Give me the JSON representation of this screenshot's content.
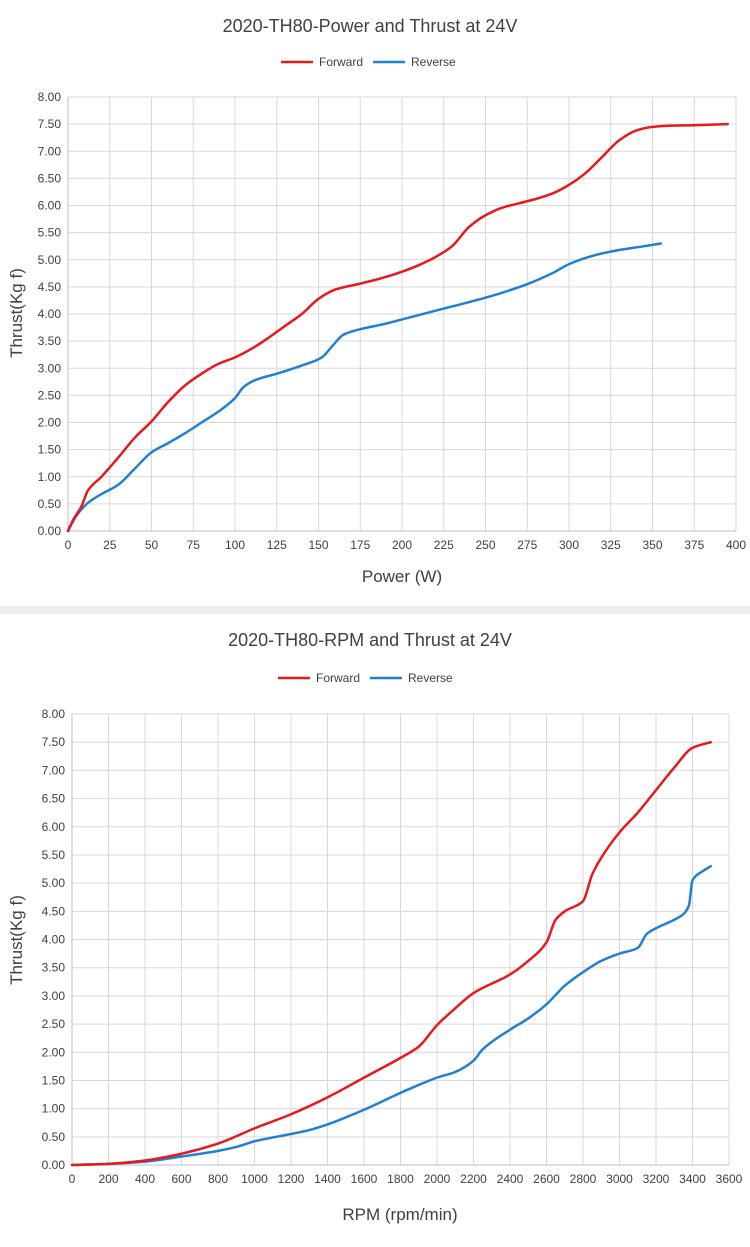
{
  "chart_data": [
    {
      "type": "line",
      "title": "2020-TH80-Power and Thrust at 24V",
      "xlabel": "Power (W)",
      "ylabel": "Thrust(Kg f)",
      "xlim": [
        0,
        400
      ],
      "ylim": [
        0,
        8
      ],
      "x_ticks": [
        "0",
        "25",
        "50",
        "75",
        "100",
        "125",
        "150",
        "175",
        "200",
        "225",
        "250",
        "275",
        "300",
        "325",
        "350",
        "375",
        "400"
      ],
      "y_ticks": [
        "0.00",
        "0.50",
        "1.00",
        "1.50",
        "2.00",
        "2.50",
        "3.00",
        "3.50",
        "4.00",
        "4.50",
        "5.00",
        "5.50",
        "6.00",
        "6.50",
        "7.00",
        "7.50",
        "8.00"
      ],
      "grid": "vertical and horizontal",
      "legend_position": "top",
      "series": [
        {
          "name": "Forward",
          "color": "#e8181e",
          "points": [
            [
              0,
              0
            ],
            [
              3,
              0.2
            ],
            [
              8,
              0.45
            ],
            [
              12,
              0.75
            ],
            [
              20,
              1.0
            ],
            [
              30,
              1.35
            ],
            [
              40,
              1.72
            ],
            [
              50,
              2.02
            ],
            [
              60,
              2.38
            ],
            [
              70,
              2.68
            ],
            [
              80,
              2.9
            ],
            [
              90,
              3.08
            ],
            [
              100,
              3.2
            ],
            [
              110,
              3.36
            ],
            [
              120,
              3.56
            ],
            [
              130,
              3.78
            ],
            [
              140,
              4.0
            ],
            [
              150,
              4.28
            ],
            [
              160,
              4.45
            ],
            [
              175,
              4.56
            ],
            [
              190,
              4.68
            ],
            [
              200,
              4.78
            ],
            [
              210,
              4.9
            ],
            [
              220,
              5.05
            ],
            [
              230,
              5.25
            ],
            [
              240,
              5.6
            ],
            [
              250,
              5.82
            ],
            [
              260,
              5.96
            ],
            [
              270,
              6.04
            ],
            [
              280,
              6.12
            ],
            [
              290,
              6.22
            ],
            [
              300,
              6.38
            ],
            [
              310,
              6.6
            ],
            [
              320,
              6.9
            ],
            [
              330,
              7.2
            ],
            [
              340,
              7.38
            ],
            [
              350,
              7.45
            ],
            [
              360,
              7.47
            ],
            [
              375,
              7.48
            ],
            [
              395,
              7.5
            ]
          ]
        },
        {
          "name": "Reverse",
          "color": "#2080d4",
          "points": [
            [
              0,
              0
            ],
            [
              5,
              0.28
            ],
            [
              12,
              0.52
            ],
            [
              20,
              0.68
            ],
            [
              30,
              0.85
            ],
            [
              40,
              1.15
            ],
            [
              50,
              1.45
            ],
            [
              60,
              1.62
            ],
            [
              70,
              1.8
            ],
            [
              80,
              2.0
            ],
            [
              90,
              2.2
            ],
            [
              100,
              2.45
            ],
            [
              105,
              2.65
            ],
            [
              112,
              2.78
            ],
            [
              125,
              2.9
            ],
            [
              140,
              3.05
            ],
            [
              152,
              3.2
            ],
            [
              158,
              3.4
            ],
            [
              165,
              3.62
            ],
            [
              175,
              3.72
            ],
            [
              190,
              3.82
            ],
            [
              200,
              3.9
            ],
            [
              225,
              4.1
            ],
            [
              250,
              4.3
            ],
            [
              275,
              4.55
            ],
            [
              290,
              4.75
            ],
            [
              300,
              4.92
            ],
            [
              315,
              5.08
            ],
            [
              330,
              5.18
            ],
            [
              345,
              5.25
            ],
            [
              355,
              5.3
            ]
          ]
        }
      ]
    },
    {
      "type": "line",
      "title": "2020-TH80-RPM and Thrust at 24V",
      "xlabel": "RPM (rpm/min)",
      "ylabel": "Thrust(Kg f)",
      "xlim": [
        0,
        3600
      ],
      "ylim": [
        0,
        8
      ],
      "x_ticks": [
        "0",
        "200",
        "400",
        "600",
        "800",
        "1000",
        "1200",
        "1400",
        "1600",
        "1800",
        "2000",
        "2200",
        "2400",
        "2600",
        "2800",
        "3000",
        "3200",
        "3400",
        "3600"
      ],
      "y_ticks": [
        "0.00",
        "0.50",
        "1.00",
        "1.50",
        "2.00",
        "2.50",
        "3.00",
        "3.50",
        "4.00",
        "4.50",
        "5.00",
        "5.50",
        "6.00",
        "6.50",
        "7.00",
        "7.50",
        "8.00"
      ],
      "grid": "vertical and horizontal",
      "legend_position": "top",
      "series": [
        {
          "name": "Forward",
          "color": "#e8181e",
          "points": [
            [
              0,
              0
            ],
            [
              200,
              0.02
            ],
            [
              400,
              0.08
            ],
            [
              600,
              0.2
            ],
            [
              800,
              0.38
            ],
            [
              1000,
              0.65
            ],
            [
              1200,
              0.9
            ],
            [
              1400,
              1.2
            ],
            [
              1600,
              1.55
            ],
            [
              1800,
              1.9
            ],
            [
              1900,
              2.1
            ],
            [
              2000,
              2.48
            ],
            [
              2100,
              2.78
            ],
            [
              2200,
              3.05
            ],
            [
              2400,
              3.38
            ],
            [
              2500,
              3.62
            ],
            [
              2600,
              3.95
            ],
            [
              2650,
              4.35
            ],
            [
              2700,
              4.5
            ],
            [
              2800,
              4.68
            ],
            [
              2850,
              5.15
            ],
            [
              2900,
              5.45
            ],
            [
              3000,
              5.9
            ],
            [
              3100,
              6.25
            ],
            [
              3200,
              6.65
            ],
            [
              3300,
              7.05
            ],
            [
              3400,
              7.4
            ],
            [
              3500,
              7.5
            ]
          ]
        },
        {
          "name": "Reverse",
          "color": "#2080d4",
          "points": [
            [
              0,
              0
            ],
            [
              200,
              0.02
            ],
            [
              400,
              0.06
            ],
            [
              600,
              0.15
            ],
            [
              800,
              0.25
            ],
            [
              900,
              0.32
            ],
            [
              1000,
              0.42
            ],
            [
              1200,
              0.55
            ],
            [
              1300,
              0.62
            ],
            [
              1400,
              0.72
            ],
            [
              1600,
              0.98
            ],
            [
              1800,
              1.28
            ],
            [
              1900,
              1.42
            ],
            [
              2000,
              1.55
            ],
            [
              2100,
              1.65
            ],
            [
              2200,
              1.85
            ],
            [
              2250,
              2.05
            ],
            [
              2400,
              2.4
            ],
            [
              2500,
              2.6
            ],
            [
              2600,
              2.85
            ],
            [
              2700,
              3.18
            ],
            [
              2800,
              3.42
            ],
            [
              2900,
              3.62
            ],
            [
              3000,
              3.75
            ],
            [
              3100,
              3.85
            ],
            [
              3150,
              4.1
            ],
            [
              3200,
              4.2
            ],
            [
              3300,
              4.35
            ],
            [
              3350,
              4.45
            ],
            [
              3380,
              4.6
            ],
            [
              3400,
              5.05
            ],
            [
              3450,
              5.2
            ],
            [
              3500,
              5.3
            ]
          ]
        }
      ]
    }
  ]
}
